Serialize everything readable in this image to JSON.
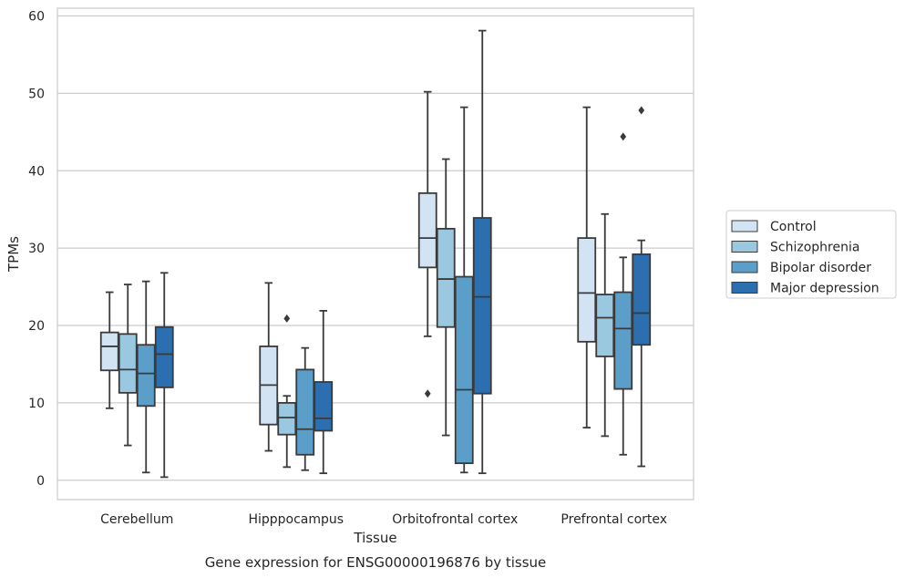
{
  "chart_data": {
    "type": "box",
    "title": "",
    "caption": "Gene expression for ENSG00000196876 by tissue",
    "xlabel": "Tissue",
    "ylabel": "TPMs",
    "ylim": [
      -2.5,
      61
    ],
    "yticks": [
      0,
      10,
      20,
      30,
      40,
      50,
      60
    ],
    "grid": "horizontal",
    "legend_position": "right",
    "categories": [
      "Cerebellum",
      "Hipppocampus",
      "Orbitofrontal cortex",
      "Prefrontal cortex"
    ],
    "series": [
      {
        "name": "Control",
        "color": "#d2e3f3",
        "boxes": [
          {
            "whislo": 9.3,
            "q1": 14.2,
            "med": 17.3,
            "q3": 19.1,
            "whishi": 24.3,
            "fliers": []
          },
          {
            "whislo": 3.8,
            "q1": 7.2,
            "med": 12.3,
            "q3": 17.3,
            "whishi": 25.5,
            "fliers": []
          },
          {
            "whislo": 18.6,
            "q1": 27.5,
            "med": 31.3,
            "q3": 37.1,
            "whishi": 50.2,
            "fliers": [
              11.2
            ]
          },
          {
            "whislo": 6.8,
            "q1": 17.9,
            "med": 24.2,
            "q3": 31.3,
            "whishi": 48.2,
            "fliers": []
          }
        ]
      },
      {
        "name": "Schizophrenia",
        "color": "#9ac8e0",
        "boxes": [
          {
            "whislo": 4.5,
            "q1": 11.3,
            "med": 14.3,
            "q3": 18.9,
            "whishi": 25.3,
            "fliers": []
          },
          {
            "whislo": 1.7,
            "q1": 5.9,
            "med": 8.1,
            "q3": 10.0,
            "whishi": 10.9,
            "fliers": [
              20.9
            ]
          },
          {
            "whislo": 5.8,
            "q1": 19.8,
            "med": 26.0,
            "q3": 32.5,
            "whishi": 41.5,
            "fliers": []
          },
          {
            "whislo": 5.7,
            "q1": 16.0,
            "med": 21.0,
            "q3": 24.0,
            "whishi": 34.4,
            "fliers": []
          }
        ]
      },
      {
        "name": "Bipolar disorder",
        "color": "#5a9ec9",
        "boxes": [
          {
            "whislo": 1.0,
            "q1": 9.6,
            "med": 13.8,
            "q3": 17.5,
            "whishi": 25.7,
            "fliers": []
          },
          {
            "whislo": 1.3,
            "q1": 3.3,
            "med": 6.6,
            "q3": 14.3,
            "whishi": 17.1,
            "fliers": []
          },
          {
            "whislo": 1.0,
            "q1": 2.2,
            "med": 11.7,
            "q3": 26.3,
            "whishi": 48.2,
            "fliers": []
          },
          {
            "whislo": 3.3,
            "q1": 11.8,
            "med": 19.6,
            "q3": 24.3,
            "whishi": 28.8,
            "fliers": [
              44.4
            ]
          }
        ]
      },
      {
        "name": "Major depression",
        "color": "#2b6fb0",
        "boxes": [
          {
            "whislo": 0.4,
            "q1": 12.0,
            "med": 16.3,
            "q3": 19.8,
            "whishi": 26.8,
            "fliers": []
          },
          {
            "whislo": 0.9,
            "q1": 6.4,
            "med": 8.0,
            "q3": 12.7,
            "whishi": 21.9,
            "fliers": []
          },
          {
            "whislo": 0.9,
            "q1": 11.2,
            "med": 23.7,
            "q3": 33.9,
            "whishi": 58.1,
            "fliers": []
          },
          {
            "whislo": 1.8,
            "q1": 17.5,
            "med": 21.6,
            "q3": 29.2,
            "whishi": 31.0,
            "fliers": [
              47.8
            ]
          }
        ]
      }
    ]
  }
}
